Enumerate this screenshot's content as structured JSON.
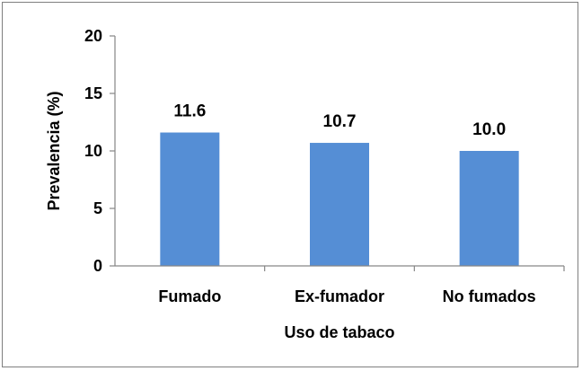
{
  "chart_data": {
    "type": "bar",
    "categories": [
      "Fumado",
      "Ex-fumador",
      "No fumados"
    ],
    "values": [
      11.6,
      10.7,
      10.0
    ],
    "data_labels": [
      "11.6",
      "10.7",
      "10.0"
    ],
    "xlabel": "Uso de tabaco",
    "ylabel": "Prevalencia (%)",
    "ylim": [
      0,
      20
    ],
    "yticks": [
      0,
      5,
      10,
      15,
      20
    ],
    "grid": false,
    "bar_color": "#558ed5",
    "axis_color": "#868686"
  }
}
